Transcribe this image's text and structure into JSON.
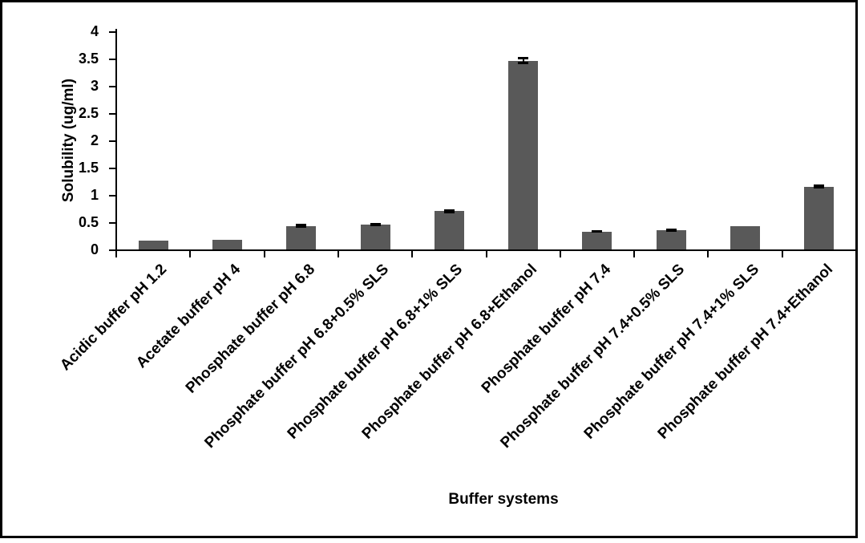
{
  "chart_data": {
    "type": "bar",
    "title": "",
    "xlabel": "Buffer systems",
    "ylabel": "Solubility (ug/ml)",
    "ylim": [
      0,
      4
    ],
    "grid": "off",
    "legend": "none",
    "bar_color": "#595959",
    "axis_color": "#000000",
    "yticks": [
      {
        "value": 0,
        "label": "0"
      },
      {
        "value": 0.5,
        "label": "0.5"
      },
      {
        "value": 1,
        "label": "1"
      },
      {
        "value": 1.5,
        "label": "1.5"
      },
      {
        "value": 2,
        "label": "2"
      },
      {
        "value": 2.5,
        "label": "2.5"
      },
      {
        "value": 3,
        "label": "3"
      },
      {
        "value": 3.5,
        "label": "3.5"
      },
      {
        "value": 4,
        "label": "4"
      }
    ],
    "categories": [
      "Acidic buffer pH 1.2",
      "Acetate buffer pH 4",
      "Phosphate buffer pH 6.8",
      "Phosphate buffer pH 6.8+0.5% SLS",
      "Phosphate buffer pH 6.8+1% SLS",
      "Phosphate buffer pH 6.8+Ethanol",
      "Phosphate buffer pH 7.4",
      "Phosphate buffer pH 7.4+0.5% SLS",
      "Phosphate buffer pH 7.4+1% SLS",
      "Phosphate buffer pH 7.4+Ethanol"
    ],
    "values": [
      0.16,
      0.18,
      0.43,
      0.46,
      0.7,
      3.46,
      0.33,
      0.36,
      0.43,
      1.15
    ],
    "errors": [
      null,
      null,
      0.02,
      0.015,
      0.02,
      0.05,
      0.01,
      0.015,
      null,
      0.02
    ]
  }
}
